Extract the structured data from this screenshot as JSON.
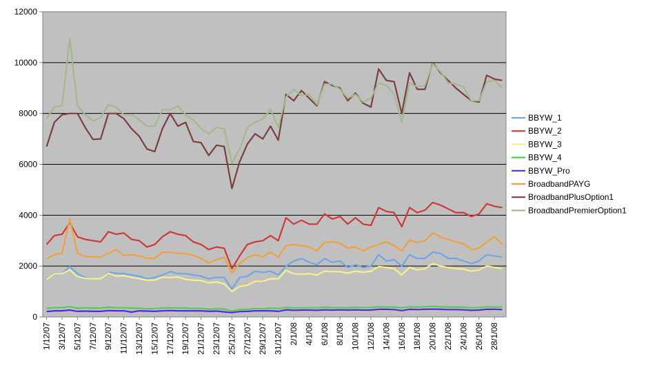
{
  "chart_data": {
    "type": "line",
    "ylim": [
      0,
      12000
    ],
    "yticks": [
      0,
      2000,
      4000,
      6000,
      8000,
      10000,
      12000
    ],
    "ytick_labels": [
      "0",
      "2000",
      "4000",
      "6000",
      "8000",
      "10000",
      "12000"
    ],
    "grid": true,
    "plot_background": "#c0c0c0",
    "legend_position": "right",
    "x": [
      "1/12/07",
      "2/12/07",
      "3/12/07",
      "4/12/07",
      "5/12/07",
      "6/12/07",
      "7/12/07",
      "8/12/07",
      "9/12/07",
      "10/12/07",
      "11/12/07",
      "12/12/07",
      "13/12/07",
      "14/12/07",
      "15/12/07",
      "16/12/07",
      "17/12/07",
      "18/12/07",
      "19/12/07",
      "20/12/07",
      "21/12/07",
      "22/12/07",
      "23/12/07",
      "24/12/07",
      "25/12/07",
      "26/12/07",
      "27/12/07",
      "28/12/07",
      "29/12/07",
      "30/12/07",
      "31/12/07",
      "1/1/08",
      "2/1/08",
      "3/1/08",
      "4/1/08",
      "5/1/08",
      "6/1/08",
      "7/1/08",
      "8/1/08",
      "9/1/08",
      "10/1/08",
      "11/1/08",
      "12/1/08",
      "13/1/08",
      "14/1/08",
      "15/1/08",
      "16/1/08",
      "17/1/08",
      "18/1/08",
      "19/1/08",
      "20/1/08",
      "21/1/08",
      "22/1/08",
      "23/1/08",
      "24/1/08",
      "25/1/08",
      "26/1/08",
      "27/1/08",
      "28/1/08",
      "29/1/08"
    ],
    "xtick_labels": [
      "1/12/07",
      "3/12/07",
      "5/12/07",
      "7/12/07",
      "9/12/07",
      "11/12/07",
      "13/12/07",
      "15/12/07",
      "17/12/07",
      "19/12/07",
      "21/12/07",
      "23/12/07",
      "25/12/07",
      "27/12/07",
      "29/12/07",
      "31/12/07",
      "2/1/08",
      "4/1/08",
      "6/1/08",
      "8/1/08",
      "10/1/08",
      "12/1/08",
      "14/1/08",
      "16/1/08",
      "18/1/08",
      "20/1/08",
      "22/1/08",
      "24/1/08",
      "26/1/08",
      "28/1/08"
    ],
    "series": [
      {
        "name": "BBYW_1",
        "color": "#6ea6e8",
        "values": [
          1500,
          1650,
          1700,
          1980,
          1700,
          1550,
          1500,
          1500,
          1750,
          1720,
          1700,
          1650,
          1600,
          1500,
          1550,
          1650,
          1780,
          1700,
          1700,
          1650,
          1600,
          1500,
          1560,
          1550,
          1100,
          1550,
          1600,
          1800,
          1750,
          1800,
          1650,
          2000,
          2200,
          2300,
          2150,
          2050,
          2300,
          2150,
          2200,
          1950,
          2050,
          1950,
          2000,
          2450,
          2200,
          2250,
          2000,
          2450,
          2300,
          2300,
          2550,
          2500,
          2300,
          2300,
          2200,
          2100,
          2200,
          2450,
          2400,
          2350
        ]
      },
      {
        "name": "BBYW_2",
        "color": "#d03838",
        "values": [
          2850,
          3200,
          3250,
          3700,
          3150,
          3050,
          3000,
          2950,
          3350,
          3250,
          3300,
          3050,
          3000,
          2750,
          2850,
          3150,
          3350,
          3250,
          3200,
          2950,
          2850,
          2650,
          2750,
          2700,
          1900,
          2400,
          2850,
          2950,
          3000,
          3200,
          3000,
          3900,
          3650,
          3800,
          3650,
          3650,
          4050,
          3850,
          3950,
          3650,
          3900,
          3650,
          3600,
          4300,
          4150,
          4100,
          3550,
          4300,
          4100,
          4200,
          4500,
          4400,
          4250,
          4100,
          4100,
          3950,
          4050,
          4450,
          4350,
          4300
        ]
      },
      {
        "name": "BBYW_3",
        "color": "#f5f08a",
        "values": [
          1480,
          1680,
          1700,
          1850,
          1580,
          1520,
          1500,
          1500,
          1720,
          1600,
          1620,
          1560,
          1500,
          1450,
          1450,
          1560,
          1550,
          1570,
          1480,
          1440,
          1430,
          1340,
          1380,
          1300,
          1000,
          1200,
          1250,
          1400,
          1400,
          1500,
          1500,
          1830,
          1700,
          1680,
          1700,
          1650,
          1800,
          1780,
          1780,
          1720,
          1800,
          1760,
          1800,
          1980,
          1950,
          1900,
          1650,
          1950,
          1850,
          1900,
          2100,
          2000,
          1950,
          1900,
          1880,
          1800,
          1850,
          2000,
          1950,
          1900
        ]
      },
      {
        "name": "BBYW_4",
        "color": "#4fcf4f",
        "values": [
          340,
          360,
          370,
          400,
          340,
          360,
          340,
          350,
          380,
          360,
          360,
          340,
          340,
          320,
          330,
          350,
          360,
          350,
          350,
          330,
          340,
          300,
          320,
          310,
          230,
          290,
          300,
          330,
          320,
          340,
          330,
          370,
          350,
          360,
          360,
          360,
          380,
          370,
          370,
          360,
          380,
          370,
          370,
          400,
          390,
          390,
          360,
          400,
          390,
          400,
          420,
          400,
          390,
          390,
          380,
          360,
          370,
          400,
          390,
          390
        ]
      },
      {
        "name": "BBYW_Pro",
        "color": "#5a24e6",
        "values": [
          210,
          240,
          240,
          270,
          220,
          230,
          220,
          220,
          250,
          240,
          240,
          190,
          240,
          230,
          220,
          240,
          250,
          240,
          240,
          240,
          240,
          220,
          230,
          200,
          170,
          210,
          220,
          240,
          240,
          240,
          220,
          280,
          260,
          270,
          270,
          260,
          280,
          270,
          280,
          270,
          280,
          270,
          270,
          300,
          300,
          290,
          250,
          300,
          290,
          300,
          310,
          300,
          290,
          290,
          280,
          260,
          270,
          300,
          300,
          290
        ]
      },
      {
        "name": "BroadbandPAYG",
        "color": "#f0a040",
        "values": [
          2280,
          2450,
          2500,
          3850,
          2500,
          2380,
          2360,
          2350,
          2500,
          2650,
          2420,
          2450,
          2400,
          2300,
          2300,
          2550,
          2550,
          2500,
          2500,
          2420,
          2300,
          2120,
          2250,
          2350,
          1730,
          2100,
          2330,
          2450,
          2360,
          2550,
          2350,
          2800,
          2850,
          2800,
          2750,
          2600,
          2920,
          2950,
          2900,
          2700,
          2750,
          2600,
          2750,
          2850,
          2950,
          2800,
          2600,
          3020,
          2920,
          3000,
          3300,
          3150,
          3050,
          2950,
          2880,
          2650,
          2700,
          2950,
          3150,
          2850
        ]
      },
      {
        "name": "BroadbandPlusOption1",
        "color": "#7a3e3e",
        "values": [
          6700,
          7650,
          7950,
          8000,
          8000,
          7450,
          6980,
          7000,
          8000,
          8000,
          7800,
          7400,
          7100,
          6600,
          6500,
          7400,
          8000,
          7500,
          7650,
          6900,
          6850,
          6350,
          6750,
          6700,
          5050,
          6100,
          6800,
          7200,
          7000,
          7500,
          6950,
          8750,
          8500,
          8900,
          8600,
          8300,
          9250,
          9100,
          9000,
          8500,
          8800,
          8400,
          8250,
          9750,
          9300,
          9250,
          8000,
          9600,
          8950,
          8950,
          10000,
          9600,
          9300,
          9000,
          8750,
          8500,
          8450,
          9500,
          9350,
          9300
        ]
      },
      {
        "name": "BroadbandPremierOption1",
        "color": "#a5b88a",
        "values": [
          7800,
          8250,
          8300,
          10950,
          8300,
          7950,
          7700,
          7850,
          8350,
          8250,
          7950,
          7950,
          7750,
          7500,
          7500,
          8150,
          8150,
          8300,
          7950,
          7750,
          7400,
          7200,
          7450,
          7400,
          6050,
          6600,
          7450,
          7650,
          7800,
          8150,
          7450,
          8650,
          8950,
          8700,
          8750,
          8350,
          9150,
          9150,
          8950,
          8600,
          8750,
          8450,
          8600,
          9200,
          9100,
          8750,
          7650,
          9200,
          9050,
          9100,
          9950,
          9650,
          9200,
          9150,
          9050,
          8500,
          8500,
          9250,
          9300,
          9000
        ]
      }
    ]
  }
}
